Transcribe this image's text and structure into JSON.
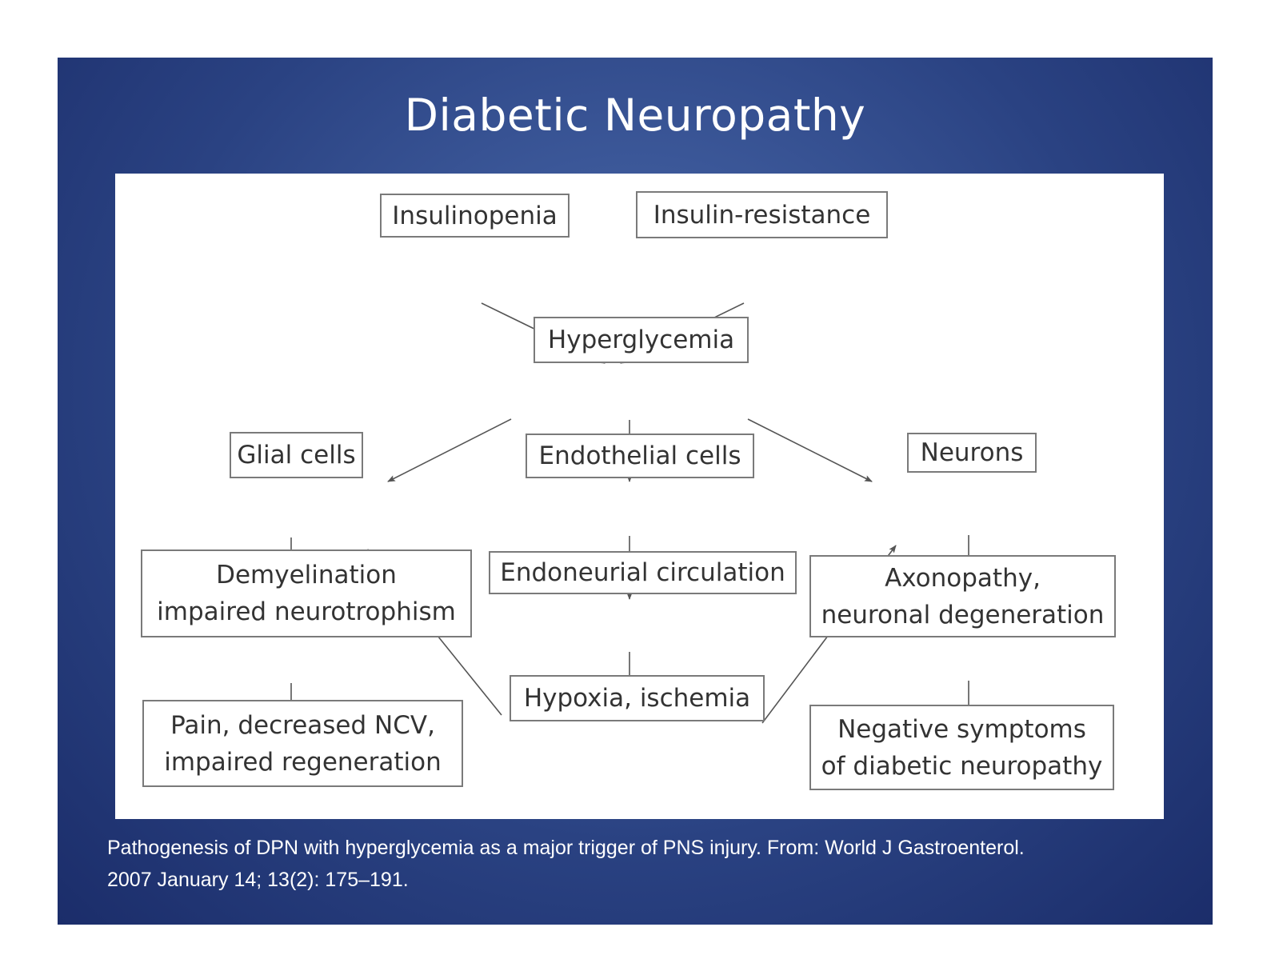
{
  "slide": {
    "title": "Diabetic Neuropathy",
    "caption": {
      "line1": "Pathogenesis of DPN with hyperglycemia as a major trigger of PNS injury. From: World J Gastroenterol.",
      "line2": "2007 January 14; 13(2): 175–191."
    }
  },
  "diagram": {
    "nodes": {
      "insulinopenia": "Insulinopenia",
      "insulin_resistance": "Insulin-resistance",
      "hyperglycemia": "Hyperglycemia",
      "glial_cells": "Glial cells",
      "endothelial_cells": "Endothelial cells",
      "neurons": "Neurons",
      "demyelination": {
        "line1": "Demyelination",
        "line2": "impaired neurotrophism"
      },
      "endoneurial_circulation": "Endoneurial circulation",
      "axonopathy": {
        "line1": "Axonopathy,",
        "line2": "neuronal degeneration"
      },
      "hypoxia_ischemia": "Hypoxia, ischemia",
      "pain": {
        "line1": "Pain, decreased NCV,",
        "line2": "impaired regeneration"
      },
      "negative_symptoms": {
        "line1": "Negative symptoms",
        "line2": "of diabetic neuropathy"
      }
    },
    "edges": [
      {
        "from": "Insulinopenia",
        "to": "Hyperglycemia"
      },
      {
        "from": "Insulin-resistance",
        "to": "Hyperglycemia"
      },
      {
        "from": "Hyperglycemia",
        "to": "Glial cells"
      },
      {
        "from": "Hyperglycemia",
        "to": "Endothelial cells"
      },
      {
        "from": "Hyperglycemia",
        "to": "Neurons"
      },
      {
        "from": "Glial cells",
        "to": "Demyelination"
      },
      {
        "from": "Endothelial cells",
        "to": "Endoneurial circulation"
      },
      {
        "from": "Neurons",
        "to": "Axonopathy"
      },
      {
        "from": "Demyelination",
        "to": "Pain, decreased NCV"
      },
      {
        "from": "Endoneurial circulation",
        "to": "Hypoxia, ischemia"
      },
      {
        "from": "Axonopathy",
        "to": "Negative symptoms"
      },
      {
        "from": "Hypoxia, ischemia",
        "to": "Glial cells"
      },
      {
        "from": "Hypoxia, ischemia",
        "to": "Neurons"
      }
    ]
  },
  "colors": {
    "slide_center": "#4a68ab",
    "slide_edge": "#1b2d6a",
    "box_border": "#7a7a7a",
    "box_text": "#333333",
    "arrow": "#555555"
  }
}
